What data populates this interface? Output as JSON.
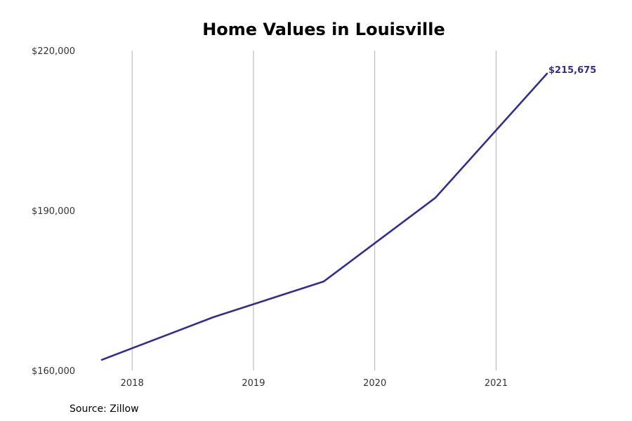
{
  "title": "Home Values in Louisville",
  "source": "Source: Zillow",
  "colors": {
    "line": "#332e8c",
    "grid": "#b3b3b3",
    "tick_text": "#333333",
    "label": "#332e8c"
  },
  "chart_data": {
    "type": "line",
    "title": "Home Values in Louisville",
    "xlabel": "",
    "ylabel": "",
    "xlim": [
      2017.75,
      2021.42
    ],
    "ylim": [
      160000,
      220000
    ],
    "x_ticks": [
      2018,
      2019,
      2020,
      2021
    ],
    "x_tick_labels": [
      "2018",
      "2019",
      "2020",
      "2021"
    ],
    "y_ticks": [
      160000,
      190000,
      220000
    ],
    "y_tick_labels": [
      "$160,000",
      "$190,000",
      "$220,000"
    ],
    "grid": "vertical",
    "series": [
      {
        "x": [
          2017.75,
          2018.67,
          2019.58,
          2020.5,
          2021.42
        ],
        "y": [
          162000,
          170000,
          176700,
          192400,
          215675
        ]
      }
    ],
    "annotations": [
      {
        "text": "$215,675",
        "x": 2021.42,
        "y": 215675
      }
    ]
  }
}
